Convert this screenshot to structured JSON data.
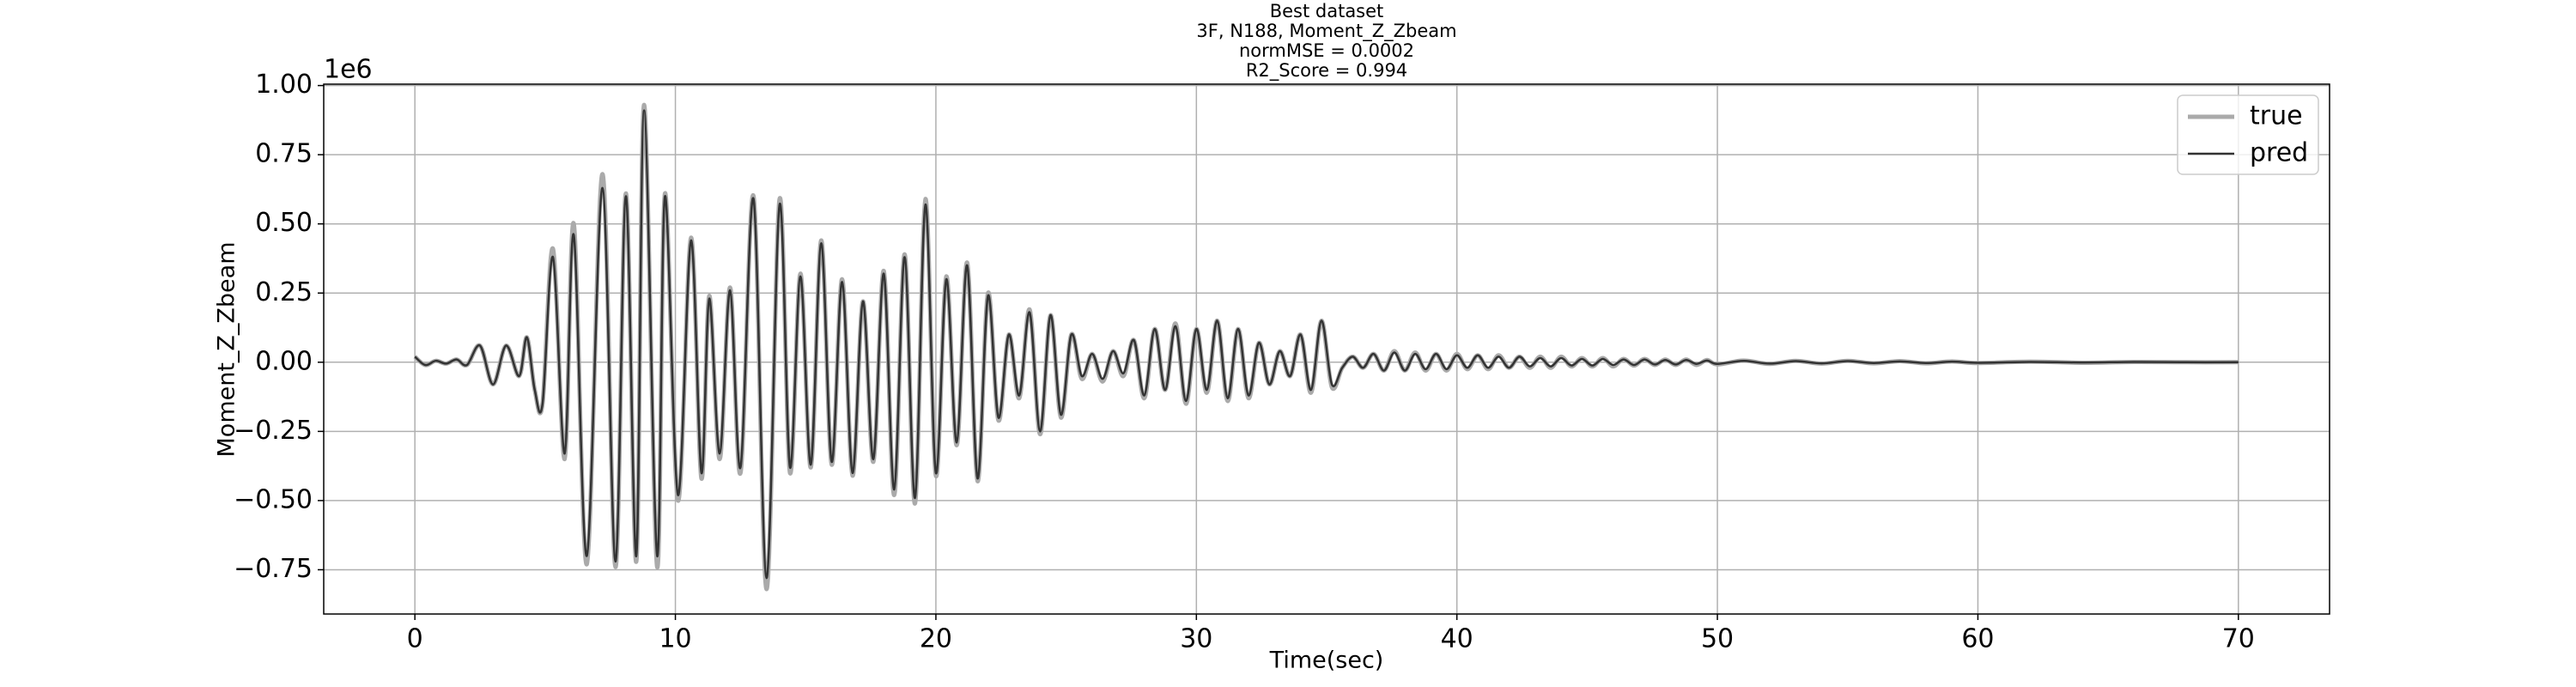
{
  "chart_data": {
    "type": "line",
    "title_lines": [
      "Best dataset",
      "3F, N188, Moment_Z_Zbeam",
      "normMSE = 0.0002",
      "R2_Score = 0.994"
    ],
    "xlabel": "Time(sec)",
    "ylabel": "Moment_Z_Zbeam",
    "y_offset_label": "1e6",
    "xlim": [
      -3.5,
      73.5
    ],
    "ylim": [
      -0.91,
      1.005
    ],
    "xticks": [
      0,
      10,
      20,
      30,
      40,
      50,
      60,
      70
    ],
    "yticks": [
      {
        "value": -0.75,
        "label": "−0.75"
      },
      {
        "value": -0.5,
        "label": "−0.50"
      },
      {
        "value": -0.25,
        "label": "−0.25"
      },
      {
        "value": 0,
        "label": "0.00"
      },
      {
        "value": 0.25,
        "label": "0.25"
      },
      {
        "value": 0.5,
        "label": "0.50"
      },
      {
        "value": 0.75,
        "label": "0.75"
      },
      {
        "value": 1,
        "label": "1.00"
      }
    ],
    "grid": true,
    "legend": "upper right",
    "x": [
      0,
      0.4,
      0.8,
      1.2,
      1.6,
      2.0,
      2.5,
      3.0,
      3.5,
      4.0,
      4.3,
      4.6,
      4.9,
      5.3,
      5.75,
      6.1,
      6.6,
      7.2,
      7.7,
      8.1,
      8.5,
      8.8,
      9.3,
      9.6,
      10.1,
      10.6,
      11.0,
      11.3,
      11.7,
      12.1,
      12.5,
      13.0,
      13.5,
      14.0,
      14.4,
      14.8,
      15.2,
      15.6,
      16.0,
      16.4,
      16.8,
      17.2,
      17.6,
      18.0,
      18.4,
      18.8,
      19.2,
      19.6,
      20.0,
      20.4,
      20.8,
      21.2,
      21.6,
      22.0,
      22.4,
      22.8,
      23.2,
      23.6,
      24.0,
      24.4,
      24.8,
      25.2,
      25.6,
      26.0,
      26.4,
      26.8,
      27.2,
      27.6,
      28.0,
      28.4,
      28.8,
      29.2,
      29.6,
      30.0,
      30.4,
      30.8,
      31.2,
      31.6,
      32.0,
      32.4,
      32.8,
      33.2,
      33.6,
      34.0,
      34.4,
      34.8,
      35.2,
      35.6,
      36.0,
      36.4,
      36.8,
      37.2,
      37.6,
      38.0,
      38.4,
      38.8,
      39.2,
      39.6,
      40.0,
      40.4,
      40.8,
      41.2,
      41.6,
      42.0,
      42.4,
      42.8,
      43.2,
      43.6,
      44.0,
      44.4,
      44.8,
      45.2,
      45.6,
      46.0,
      46.4,
      46.8,
      47.2,
      47.6,
      48.0,
      48.4,
      48.8,
      49.2,
      49.6,
      50.0,
      51,
      52,
      53,
      54,
      55,
      56,
      57,
      58,
      59,
      60,
      62,
      64,
      66,
      68,
      70
    ],
    "series": [
      {
        "name": "true",
        "color": "#aaaaaa",
        "values": [
          0.02,
          -0.01,
          0.005,
          -0.005,
          0.01,
          -0.01,
          0.06,
          -0.08,
          0.06,
          -0.05,
          0.09,
          -0.1,
          -0.15,
          0.41,
          -0.35,
          0.5,
          -0.73,
          0.68,
          -0.74,
          0.61,
          -0.72,
          0.93,
          -0.74,
          0.61,
          -0.5,
          0.45,
          -0.42,
          0.24,
          -0.35,
          0.27,
          -0.4,
          0.6,
          -0.82,
          0.59,
          -0.4,
          0.32,
          -0.38,
          0.44,
          -0.37,
          0.3,
          -0.41,
          0.22,
          -0.36,
          0.33,
          -0.48,
          0.39,
          -0.51,
          0.59,
          -0.41,
          0.31,
          -0.3,
          0.36,
          -0.43,
          0.25,
          -0.21,
          0.1,
          -0.13,
          0.19,
          -0.26,
          0.17,
          -0.2,
          0.1,
          -0.06,
          0.03,
          -0.07,
          0.04,
          -0.05,
          0.08,
          -0.13,
          0.12,
          -0.1,
          0.14,
          -0.15,
          0.12,
          -0.11,
          0.15,
          -0.14,
          0.12,
          -0.13,
          0.07,
          -0.08,
          0.04,
          -0.05,
          0.1,
          -0.11,
          0.15,
          -0.09,
          -0.02,
          0.02,
          -0.02,
          0.03,
          -0.03,
          0.04,
          -0.03,
          0.035,
          -0.03,
          0.03,
          -0.03,
          0.03,
          -0.025,
          0.025,
          -0.025,
          0.025,
          -0.02,
          0.02,
          -0.02,
          0.02,
          -0.02,
          0.02,
          -0.015,
          0.015,
          -0.015,
          0.015,
          -0.015,
          0.012,
          -0.012,
          0.012,
          -0.01,
          0.01,
          -0.01,
          0.01,
          -0.01,
          0.008,
          -0.008,
          0.006,
          -0.006,
          0.005,
          -0.005,
          0.005,
          -0.004,
          0.004,
          -0.004,
          0.003,
          -0.003,
          0.002,
          -0.002,
          0.001,
          0,
          0
        ]
      },
      {
        "name": "pred",
        "color": "#333333",
        "values": [
          0.02,
          -0.01,
          0.005,
          -0.005,
          0.01,
          -0.01,
          0.06,
          -0.08,
          0.06,
          -0.05,
          0.09,
          -0.1,
          -0.15,
          0.38,
          -0.33,
          0.46,
          -0.7,
          0.63,
          -0.72,
          0.6,
          -0.7,
          0.91,
          -0.7,
          0.6,
          -0.48,
          0.44,
          -0.4,
          0.23,
          -0.33,
          0.26,
          -0.38,
          0.59,
          -0.78,
          0.57,
          -0.38,
          0.31,
          -0.37,
          0.43,
          -0.36,
          0.29,
          -0.4,
          0.22,
          -0.35,
          0.32,
          -0.46,
          0.38,
          -0.49,
          0.57,
          -0.4,
          0.3,
          -0.29,
          0.35,
          -0.42,
          0.24,
          -0.2,
          0.1,
          -0.12,
          0.18,
          -0.25,
          0.17,
          -0.19,
          0.1,
          -0.05,
          0.03,
          -0.06,
          0.04,
          -0.04,
          0.08,
          -0.12,
          0.12,
          -0.1,
          0.13,
          -0.14,
          0.12,
          -0.1,
          0.15,
          -0.13,
          0.12,
          -0.12,
          0.07,
          -0.08,
          0.04,
          -0.05,
          0.1,
          -0.1,
          0.15,
          -0.08,
          -0.02,
          0.02,
          -0.02,
          0.03,
          -0.03,
          0.035,
          -0.03,
          0.03,
          -0.025,
          0.03,
          -0.025,
          0.025,
          -0.02,
          0.025,
          -0.02,
          0.02,
          -0.02,
          0.02,
          -0.015,
          0.015,
          -0.015,
          0.015,
          -0.012,
          0.012,
          -0.012,
          0.012,
          -0.01,
          0.01,
          -0.01,
          0.01,
          -0.008,
          0.008,
          -0.008,
          0.008,
          -0.006,
          0.006,
          -0.006,
          0.005,
          -0.005,
          0.004,
          -0.004,
          0.004,
          -0.003,
          0.003,
          -0.003,
          0.002,
          -0.002,
          0.001,
          -0.001,
          0.001,
          0,
          0
        ]
      }
    ]
  }
}
